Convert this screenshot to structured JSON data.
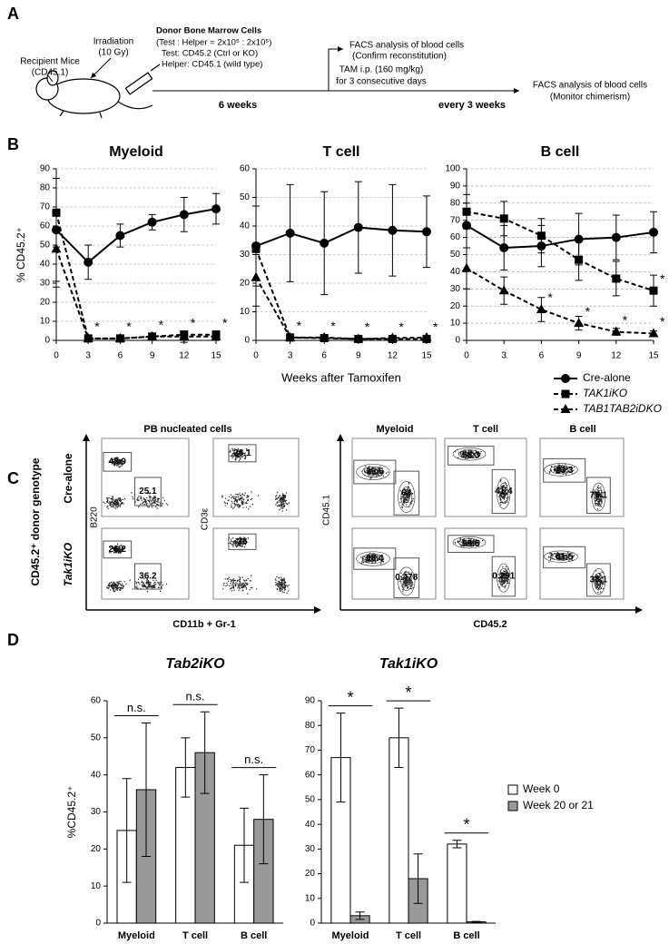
{
  "panel_labels": [
    "A",
    "B",
    "C",
    "D"
  ],
  "panel_a": {
    "irradiation": [
      "Irradiation",
      "(10 Gy)"
    ],
    "recipient": [
      "Recipient Mice",
      "(CD45.1)"
    ],
    "donor": [
      "Donor Bone Marrow Cells",
      "(Test : Helper = 2x10⁵ : 2x10⁵)",
      "Test: CD45.2 (Ctrl or KO)",
      "Helper: CD45.1 (wild type)"
    ],
    "first_interval": "6 weeks",
    "facs_1": [
      "FACS analysis of blood cells",
      "(Confirm reconstitution)"
    ],
    "tam": [
      "TAM i.p. (160 mg/kg)",
      "for 3 consecutive days"
    ],
    "repeat_interval": "every 3 weeks",
    "facs_2": [
      "FACS analysis of blood cells",
      "(Monitor chimerism)"
    ]
  },
  "chart_data": [
    {
      "type": "line",
      "title": "Myeloid",
      "ylabel": "% CD45.2⁺",
      "x": [
        0,
        3,
        6,
        9,
        12,
        15
      ],
      "xlim": [
        0,
        15
      ],
      "xticks": [
        0,
        3,
        6,
        9,
        12,
        15
      ],
      "ylim": [
        0,
        90
      ],
      "yticks": [
        0,
        10,
        20,
        30,
        40,
        50,
        60,
        70,
        80,
        90
      ],
      "grid": true,
      "series": [
        {
          "color": "#000000",
          "marker": "circle",
          "dash": false,
          "values": [
            58,
            41,
            55,
            62,
            66,
            69
          ],
          "errors": [
            27,
            9,
            6,
            4,
            9,
            8
          ]
        },
        {
          "color": "#000000",
          "marker": "square",
          "dash": true,
          "values": [
            67,
            1,
            1,
            2,
            3,
            3
          ],
          "errors": [
            18,
            1,
            1,
            1,
            2,
            2
          ]
        },
        {
          "color": "#000000",
          "marker": "triangle",
          "dash": true,
          "values": [
            48,
            1,
            1,
            2,
            2,
            2
          ],
          "errors": [
            20,
            1,
            1,
            1,
            3,
            2
          ]
        }
      ],
      "annotations": [
        {
          "x": 3,
          "series": 1,
          "text": "*"
        },
        {
          "x": 6,
          "series": 1,
          "text": "*"
        },
        {
          "x": 9,
          "series": 1,
          "text": "*"
        },
        {
          "x": 12,
          "series": 1,
          "text": "*"
        },
        {
          "x": 15,
          "series": 1,
          "text": "*"
        }
      ]
    },
    {
      "type": "line",
      "title": "T cell",
      "xlabel": "Weeks after Tamoxifen",
      "x": [
        0,
        3,
        6,
        9,
        12,
        15
      ],
      "xlim": [
        0,
        15
      ],
      "xticks": [
        0,
        3,
        6,
        9,
        12,
        15
      ],
      "ylim": [
        0,
        60
      ],
      "yticks": [
        0,
        10,
        20,
        30,
        40,
        50,
        60
      ],
      "grid": true,
      "series": [
        {
          "color": "#000000",
          "marker": "circle",
          "dash": false,
          "values": [
            33,
            37.5,
            34,
            39.5,
            38.5,
            38
          ],
          "errors": [
            14,
            17,
            18,
            16,
            16,
            12.5
          ]
        },
        {
          "color": "#000000",
          "marker": "square",
          "dash": true,
          "values": [
            32,
            1,
            0.8,
            0.5,
            0.5,
            0.5
          ],
          "errors": [
            2,
            1,
            0.5,
            0.5,
            0.5,
            0.5
          ]
        },
        {
          "color": "#000000",
          "marker": "triangle",
          "dash": true,
          "values": [
            22,
            1,
            1,
            0.5,
            0.8,
            1
          ],
          "errors": [
            10,
            1,
            0.5,
            0.5,
            0.5,
            0.5
          ]
        }
      ],
      "annotations": [
        {
          "x": 3,
          "series": 1,
          "text": "*"
        },
        {
          "x": 6,
          "series": 1,
          "text": "*"
        },
        {
          "x": 9,
          "series": 1,
          "text": "*"
        },
        {
          "x": 12,
          "series": 1,
          "text": "*"
        },
        {
          "x": 15,
          "series": 1,
          "text": "*"
        }
      ]
    },
    {
      "type": "line",
      "title": "B cell",
      "x": [
        0,
        3,
        6,
        9,
        12,
        15
      ],
      "xlim": [
        0,
        15
      ],
      "xticks": [
        0,
        3,
        6,
        9,
        12,
        15
      ],
      "ylim": [
        0,
        100
      ],
      "yticks": [
        0,
        10,
        20,
        30,
        40,
        50,
        60,
        70,
        80,
        90,
        100
      ],
      "grid": true,
      "legend": "bottom-right",
      "series": [
        {
          "name": "Cre-alone",
          "color": "#000000",
          "marker": "circle",
          "dash": false,
          "values": [
            67,
            54,
            55,
            59,
            60,
            63
          ],
          "errors": [
            13,
            13,
            12,
            15,
            13,
            12
          ]
        },
        {
          "name": "TAK1iKO",
          "color": "#000000",
          "marker": "square",
          "dash": true,
          "values": [
            75,
            71,
            61,
            47,
            36,
            29
          ],
          "errors": [
            10,
            10,
            10,
            12,
            10,
            9
          ]
        },
        {
          "name": "TAB1TAB2iDKO",
          "color": "#000000",
          "marker": "triangle",
          "dash": true,
          "values": [
            42,
            29,
            18,
            10,
            5,
            4
          ],
          "errors": [
            12,
            8,
            7,
            4,
            2,
            1.5
          ]
        }
      ],
      "annotations": [
        {
          "x": 6,
          "series": 2,
          "text": "*"
        },
        {
          "x": 9,
          "series": 2,
          "text": "*"
        },
        {
          "x": 12,
          "series": 2,
          "text": "*"
        },
        {
          "x": 15,
          "series": 2,
          "text": "*"
        },
        {
          "x": 15,
          "series": 1,
          "text": "*"
        }
      ]
    },
    {
      "type": "bar",
      "title": "Tab2iKO",
      "ylabel": "%CD45.2⁺",
      "categories": [
        "Myeloid",
        "T cell",
        "B cell"
      ],
      "ylim": [
        0,
        60
      ],
      "yticks": [
        0,
        10,
        20,
        30,
        40,
        50,
        60
      ],
      "series": [
        {
          "color": "#ffffff",
          "values": [
            25,
            42,
            21
          ],
          "errors": [
            14,
            8,
            10
          ]
        },
        {
          "color": "#999999",
          "values": [
            36,
            46,
            28
          ],
          "errors": [
            18,
            11,
            12
          ]
        }
      ],
      "annotations": [
        {
          "category": 0,
          "text": "n.s."
        },
        {
          "category": 1,
          "text": "n.s."
        },
        {
          "category": 2,
          "text": "n.s."
        }
      ]
    },
    {
      "type": "bar",
      "title": "Tak1iKO",
      "categories": [
        "Myeloid",
        "T cell",
        "B cell"
      ],
      "ylim": [
        0,
        90
      ],
      "yticks": [
        0,
        10,
        20,
        30,
        40,
        50,
        60,
        70,
        80,
        90
      ],
      "legend": "right",
      "series": [
        {
          "name": "Week 0",
          "color": "#ffffff",
          "values": [
            67,
            75,
            32
          ],
          "errors": [
            18,
            12,
            1.5
          ]
        },
        {
          "name": "Week 20 or 21",
          "color": "#999999",
          "values": [
            3,
            18,
            0.5
          ],
          "errors": [
            1.5,
            10,
            0.2
          ]
        }
      ],
      "annotations": [
        {
          "category": 0,
          "text": "*"
        },
        {
          "category": 1,
          "text": "*"
        },
        {
          "category": 2,
          "text": "*"
        }
      ]
    }
  ],
  "panel_c": {
    "group_titles": [
      "PB nucleated cells",
      "Myeloid",
      "T cell",
      "B cell"
    ],
    "row_labels": [
      "Cre-alone",
      "Tak1iKO"
    ],
    "side_label": "CD45.2⁺ donor genotype",
    "axis_labels": {
      "b220": "B220",
      "cd3": "CD3ε",
      "cd11b": "CD11b + Gr-1",
      "cd45_1": "CD45.1",
      "cd45_2": "CD45.2"
    },
    "gates": [
      [
        [
          42.9,
          25.1
        ],
        [
          28.1
        ],
        [
          35.5,
          64
        ],
        [
          58.3,
          41.4
        ],
        [
          23.3,
          76.1
        ]
      ],
      [
        [
          26.2,
          36.2
        ],
        [
          26
        ],
        [
          98.4,
          0.478
        ],
        [
          99.5,
          0.291
        ],
        [
          61.5,
          38.1
        ]
      ]
    ]
  }
}
